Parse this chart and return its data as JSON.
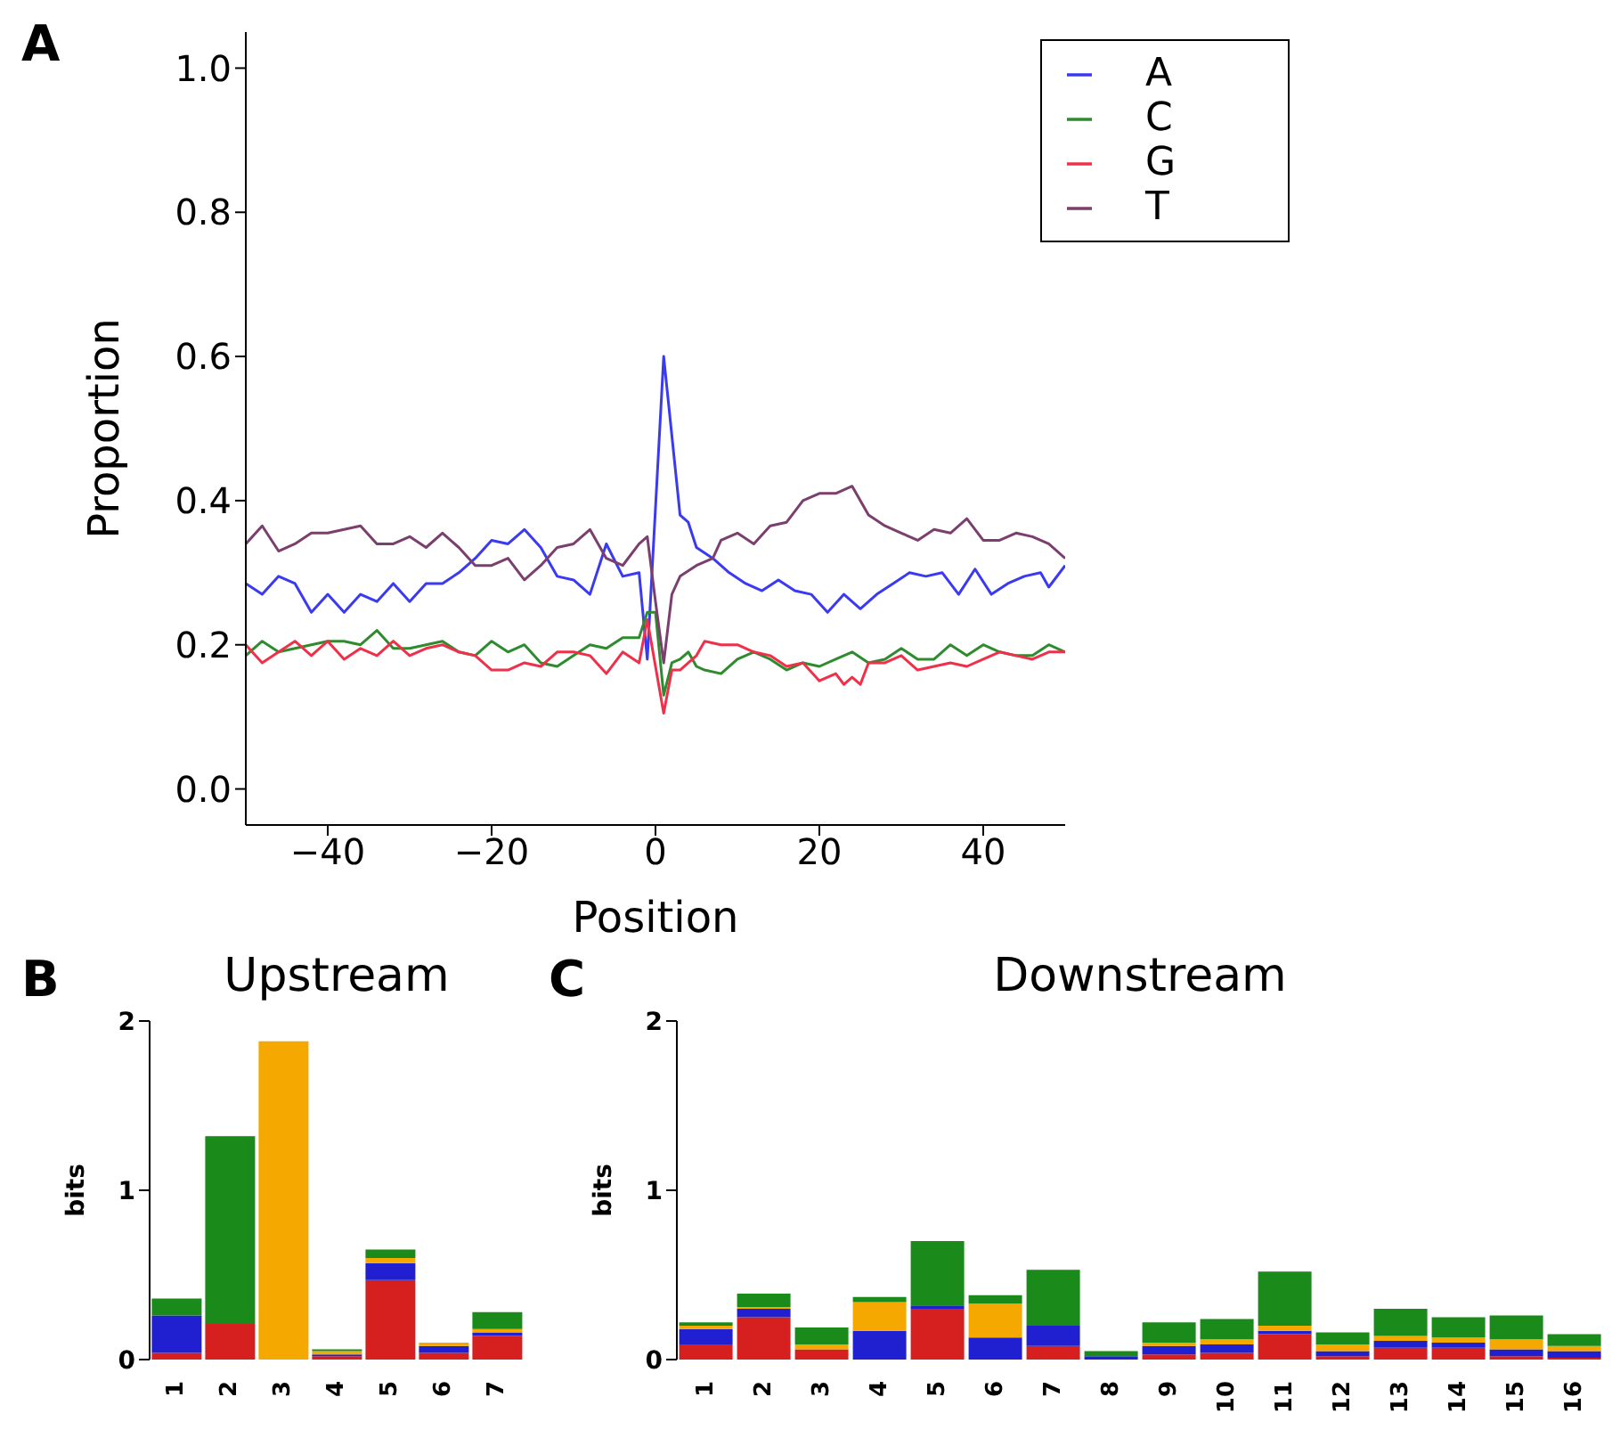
{
  "chart_data": [
    {
      "type": "line",
      "annotations": [
        "A"
      ],
      "xlabel": "Position",
      "ylabel": "Proportion",
      "xlim": [
        -50,
        50
      ],
      "ylim": [
        -0.05,
        1.05
      ],
      "xticks": [
        {
          "value": -40,
          "label": "−40"
        },
        {
          "value": -20,
          "label": "−20"
        },
        0,
        20,
        40
      ],
      "yticks": [
        {
          "value": 0,
          "label": "0.0"
        },
        {
          "value": 0.2,
          "label": "0.2"
        },
        {
          "value": 0.4,
          "label": "0.4"
        },
        {
          "value": 0.6,
          "label": "0.6"
        },
        {
          "value": 0.8,
          "label": "0.8"
        },
        {
          "value": 1,
          "label": "1.0"
        }
      ],
      "legend": "top right",
      "grid": false,
      "marker": "none",
      "line_style": "solid",
      "series": [
        {
          "name": "A",
          "color": "#3a3af2",
          "x": [
            -50,
            -48,
            -46,
            -44,
            -42,
            -40,
            -38,
            -36,
            -34,
            -32,
            -30,
            -28,
            -26,
            -24,
            -22,
            -20,
            -18,
            -16,
            -14,
            -12,
            -10,
            -8,
            -6,
            -4,
            -2,
            -1,
            0,
            1,
            3,
            4,
            5,
            7,
            9,
            11,
            13,
            15,
            17,
            19,
            21,
            23,
            25,
            27,
            29,
            31,
            33,
            35,
            37,
            39,
            41,
            43,
            45,
            47,
            48,
            50
          ],
          "values": [
            0.285,
            0.27,
            0.295,
            0.285,
            0.245,
            0.27,
            0.245,
            0.27,
            0.26,
            0.285,
            0.26,
            0.285,
            0.285,
            0.3,
            0.32,
            0.345,
            0.34,
            0.36,
            0.335,
            0.295,
            0.29,
            0.27,
            0.34,
            0.295,
            0.3,
            0.18,
            0.39,
            0.6,
            0.38,
            0.37,
            0.335,
            0.32,
            0.3,
            0.285,
            0.275,
            0.29,
            0.275,
            0.27,
            0.245,
            0.27,
            0.25,
            0.27,
            0.285,
            0.3,
            0.295,
            0.3,
            0.27,
            0.305,
            0.27,
            0.285,
            0.295,
            0.3,
            0.28,
            0.31
          ]
        },
        {
          "name": "C",
          "color": "#2e8b2e",
          "x": [
            -50,
            -48,
            -46,
            -44,
            -42,
            -40,
            -38,
            -36,
            -34,
            -32,
            -30,
            -28,
            -26,
            -24,
            -22,
            -20,
            -18,
            -16,
            -14,
            -12,
            -10,
            -8,
            -6,
            -4,
            -2,
            -1,
            0,
            1,
            2,
            3,
            4,
            5,
            6,
            8,
            10,
            12,
            14,
            16,
            18,
            20,
            22,
            24,
            26,
            28,
            30,
            32,
            34,
            36,
            38,
            40,
            42,
            44,
            46,
            48,
            50
          ],
          "values": [
            0.185,
            0.205,
            0.19,
            0.195,
            0.2,
            0.205,
            0.205,
            0.2,
            0.22,
            0.195,
            0.195,
            0.2,
            0.205,
            0.19,
            0.185,
            0.205,
            0.19,
            0.2,
            0.175,
            0.17,
            0.185,
            0.2,
            0.195,
            0.21,
            0.21,
            0.245,
            0.245,
            0.13,
            0.175,
            0.18,
            0.19,
            0.17,
            0.165,
            0.16,
            0.18,
            0.19,
            0.18,
            0.165,
            0.175,
            0.17,
            0.18,
            0.19,
            0.175,
            0.18,
            0.195,
            0.18,
            0.18,
            0.2,
            0.185,
            0.2,
            0.19,
            0.185,
            0.185,
            0.2,
            0.19
          ]
        },
        {
          "name": "G",
          "color": "#f0304a",
          "x": [
            -50,
            -48,
            -46,
            -44,
            -42,
            -40,
            -38,
            -36,
            -34,
            -32,
            -30,
            -28,
            -26,
            -24,
            -22,
            -20,
            -18,
            -16,
            -14,
            -12,
            -10,
            -8,
            -6,
            -4,
            -2,
            -1,
            0,
            1,
            2,
            3,
            5,
            6,
            8,
            10,
            12,
            14,
            16,
            18,
            20,
            22,
            23,
            24,
            25,
            26,
            28,
            30,
            32,
            34,
            36,
            38,
            40,
            42,
            44,
            46,
            48,
            50
          ],
          "values": [
            0.2,
            0.175,
            0.19,
            0.205,
            0.185,
            0.205,
            0.18,
            0.195,
            0.185,
            0.205,
            0.185,
            0.195,
            0.2,
            0.19,
            0.185,
            0.165,
            0.165,
            0.175,
            0.17,
            0.19,
            0.19,
            0.185,
            0.16,
            0.19,
            0.175,
            0.235,
            0.17,
            0.105,
            0.165,
            0.165,
            0.185,
            0.205,
            0.2,
            0.2,
            0.19,
            0.185,
            0.17,
            0.175,
            0.15,
            0.16,
            0.145,
            0.155,
            0.145,
            0.175,
            0.175,
            0.185,
            0.165,
            0.17,
            0.175,
            0.17,
            0.18,
            0.19,
            0.185,
            0.18,
            0.19,
            0.19
          ]
        },
        {
          "name": "T",
          "color": "#7b3f6e",
          "x": [
            -50,
            -48,
            -46,
            -44,
            -42,
            -40,
            -38,
            -36,
            -34,
            -32,
            -30,
            -28,
            -26,
            -24,
            -22,
            -20,
            -18,
            -16,
            -14,
            -12,
            -10,
            -8,
            -6,
            -4,
            -2,
            -1,
            0,
            1,
            2,
            3,
            5,
            7,
            8,
            10,
            12,
            14,
            16,
            18,
            20,
            22,
            24,
            26,
            28,
            30,
            32,
            34,
            36,
            38,
            40,
            42,
            44,
            46,
            48,
            50
          ],
          "values": [
            0.34,
            0.365,
            0.33,
            0.34,
            0.355,
            0.355,
            0.36,
            0.365,
            0.34,
            0.34,
            0.35,
            0.335,
            0.355,
            0.335,
            0.31,
            0.31,
            0.32,
            0.29,
            0.31,
            0.335,
            0.34,
            0.36,
            0.32,
            0.31,
            0.34,
            0.35,
            0.26,
            0.175,
            0.27,
            0.295,
            0.31,
            0.32,
            0.345,
            0.355,
            0.34,
            0.365,
            0.37,
            0.4,
            0.41,
            0.41,
            0.42,
            0.38,
            0.365,
            0.355,
            0.345,
            0.36,
            0.355,
            0.375,
            0.345,
            0.345,
            0.355,
            0.35,
            0.34,
            0.32
          ]
        }
      ]
    },
    {
      "type": "bar",
      "stacked": true,
      "annotations": [
        "B"
      ],
      "title": "Upstream",
      "ylabel": "bits",
      "ylim": [
        0,
        2
      ],
      "yticks": [
        0,
        1,
        2
      ],
      "categories": [
        "1",
        "2",
        "3",
        "4",
        "5",
        "6",
        "7"
      ],
      "series": [
        {
          "color": "#d62020",
          "values": [
            0.04,
            0.21,
            0,
            0.02,
            0.47,
            0.04,
            0.14
          ]
        },
        {
          "color": "#2020d0",
          "values": [
            0.22,
            0,
            0,
            0.01,
            0.1,
            0.04,
            0.02
          ]
        },
        {
          "color": "#f5a800",
          "values": [
            0,
            0,
            1.88,
            0.02,
            0.03,
            0.02,
            0.02
          ]
        },
        {
          "color": "#1a8a1a",
          "values": [
            0.1,
            1.11,
            0,
            0.01,
            0.05,
            0,
            0.1
          ]
        }
      ]
    },
    {
      "type": "bar",
      "stacked": true,
      "annotations": [
        "C"
      ],
      "title": "Downstream",
      "ylabel": "bits",
      "ylim": [
        0,
        2
      ],
      "yticks": [
        0,
        1,
        2
      ],
      "categories": [
        "1",
        "2",
        "3",
        "4",
        "5",
        "6",
        "7",
        "8",
        "9",
        "10",
        "11",
        "12",
        "13",
        "14",
        "15",
        "16"
      ],
      "series": [
        {
          "color": "#d62020",
          "values": [
            0.09,
            0.25,
            0.06,
            0,
            0.3,
            0,
            0.08,
            0,
            0.03,
            0.04,
            0.15,
            0.02,
            0.07,
            0.07,
            0.02,
            0.01
          ]
        },
        {
          "color": "#2020d0",
          "values": [
            0.09,
            0.05,
            0,
            0.17,
            0.02,
            0.13,
            0.12,
            0.02,
            0.05,
            0.05,
            0.02,
            0.03,
            0.04,
            0.03,
            0.04,
            0.04
          ]
        },
        {
          "color": "#f5a800",
          "values": [
            0.02,
            0.01,
            0.03,
            0.17,
            0,
            0.2,
            0,
            0,
            0.02,
            0.03,
            0.03,
            0.04,
            0.03,
            0.03,
            0.06,
            0.03
          ]
        },
        {
          "color": "#1a8a1a",
          "values": [
            0.02,
            0.08,
            0.1,
            0.03,
            0.38,
            0.05,
            0.33,
            0.03,
            0.12,
            0.12,
            0.32,
            0.07,
            0.16,
            0.12,
            0.14,
            0.07
          ]
        }
      ]
    }
  ]
}
